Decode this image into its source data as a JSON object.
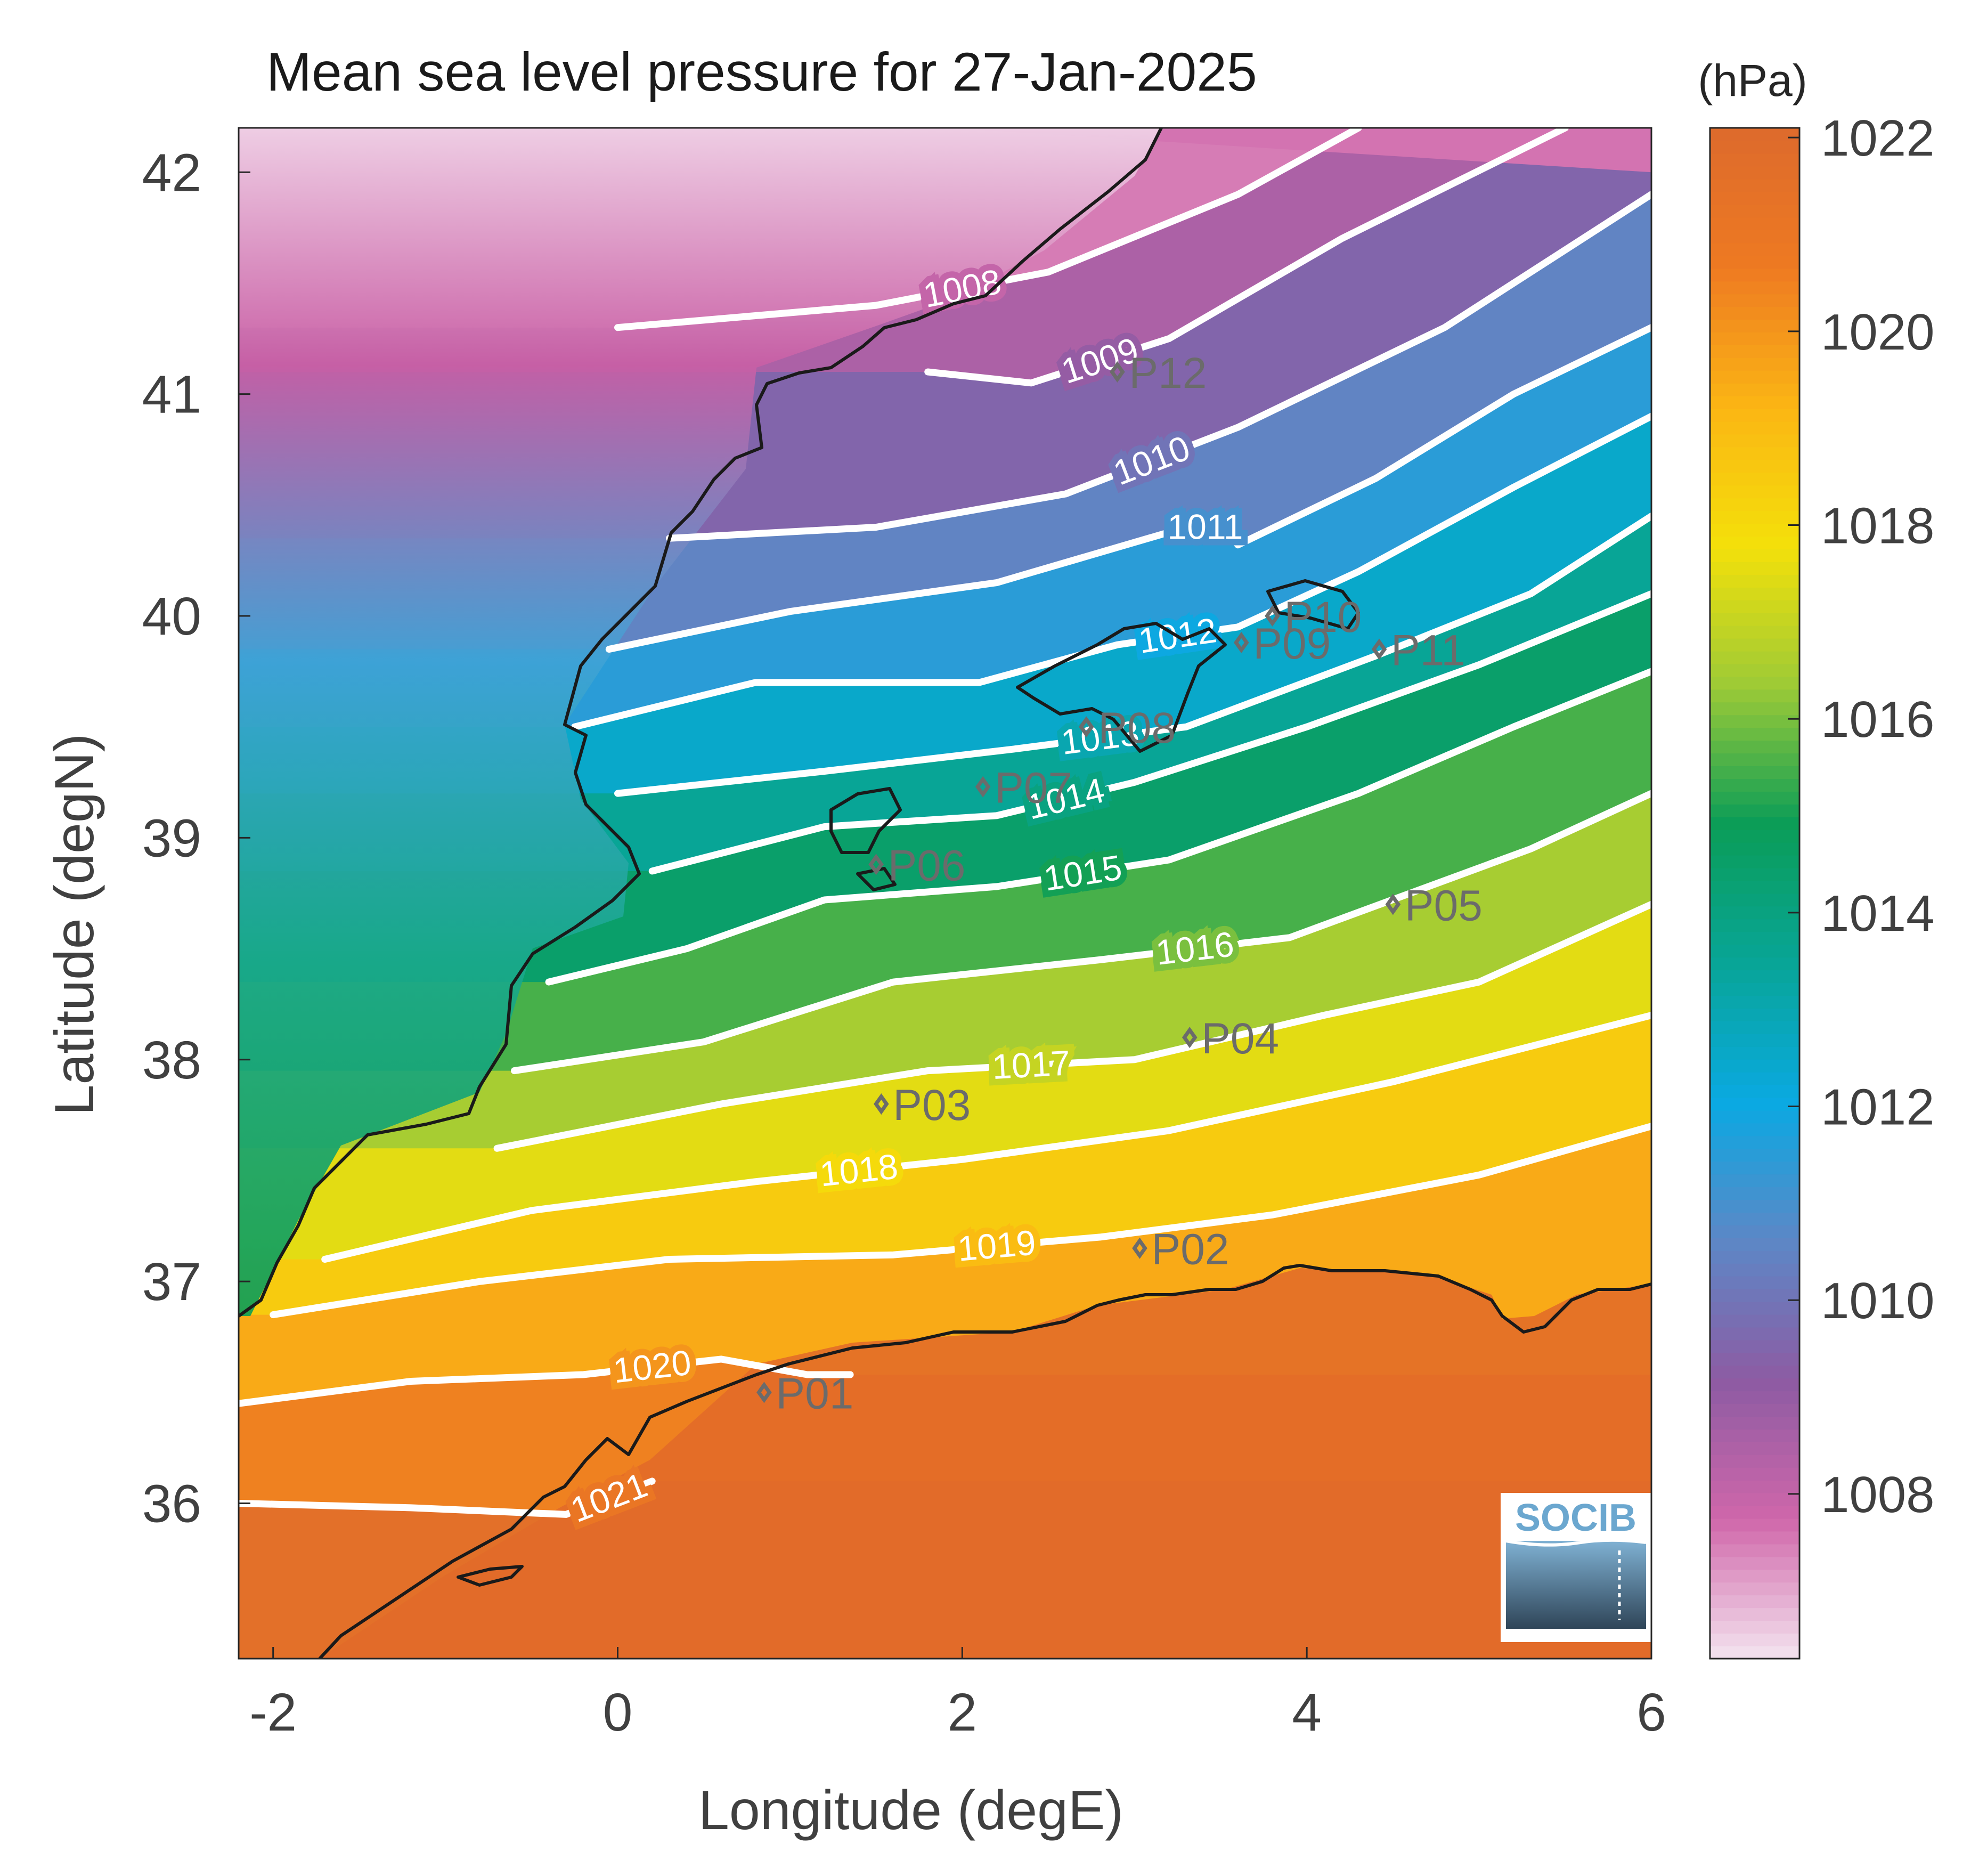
{
  "chart_data": {
    "type": "heatmap",
    "title": "Mean sea level pressure for 27-Jan-2025",
    "xlabel": "Longitude (degE)",
    "ylabel": "Latitude (degN)",
    "xlim": [
      -2.2,
      6.0
    ],
    "ylim": [
      35.3,
      42.2
    ],
    "xticks": [
      -2,
      0,
      2,
      4,
      6
    ],
    "xtick_labels": [
      "-2",
      "0",
      "2",
      "4",
      "6"
    ],
    "yticks": [
      36,
      37,
      38,
      39,
      40,
      41,
      42
    ],
    "ytick_labels": [
      "36",
      "37",
      "38",
      "39",
      "40",
      "41",
      "42"
    ],
    "colorbar": {
      "unit": "(hPa)",
      "range": [
        1006.3,
        1022.1
      ],
      "ticks": [
        1008,
        1010,
        1012,
        1014,
        1016,
        1018,
        1020,
        1022
      ],
      "tick_labels": [
        "1008",
        "1010",
        "1012",
        "1014",
        "1016",
        "1018",
        "1020",
        "1022"
      ],
      "colormap": [
        "#f4e4ef",
        "#d067aa",
        "#8d5ba3",
        "#5d87c6",
        "#0aa9e2",
        "#08a597",
        "#0b9d57",
        "#9ecb36",
        "#f4e00a",
        "#fbb514",
        "#ee7a22",
        "#dd6a2c"
      ]
    },
    "contours": [
      {
        "level": 1008,
        "label": "1008",
        "points": [
          [
            0.0,
            41.3
          ],
          [
            1.5,
            41.4
          ],
          [
            2.5,
            41.55
          ],
          [
            3.6,
            41.9
          ],
          [
            4.3,
            42.2
          ]
        ]
      },
      {
        "level": 1009,
        "label": "1009",
        "points": [
          [
            1.8,
            41.1
          ],
          [
            2.4,
            41.05
          ],
          [
            3.2,
            41.25
          ],
          [
            4.2,
            41.7
          ],
          [
            5.5,
            42.2
          ]
        ]
      },
      {
        "level": 1010,
        "label": "1010",
        "points": [
          [
            0.3,
            40.35
          ],
          [
            1.5,
            40.4
          ],
          [
            2.6,
            40.55
          ],
          [
            3.6,
            40.85
          ],
          [
            4.8,
            41.3
          ],
          [
            6.0,
            41.9
          ]
        ]
      },
      {
        "level": 1011,
        "label": "1011",
        "points": [
          [
            -0.05,
            39.85
          ],
          [
            1.0,
            40.02
          ],
          [
            2.2,
            40.15
          ],
          [
            3.3,
            40.4
          ],
          [
            3.52,
            40.4
          ],
          [
            3.6,
            40.32
          ],
          [
            4.4,
            40.62
          ],
          [
            5.2,
            41.0
          ],
          [
            6.0,
            41.3
          ]
        ]
      },
      {
        "level": 1012,
        "label": "1012",
        "points": [
          [
            -0.25,
            39.5
          ],
          [
            0.8,
            39.7
          ],
          [
            2.1,
            39.7
          ],
          [
            2.9,
            39.87
          ],
          [
            3.6,
            39.95
          ],
          [
            4.3,
            40.2
          ],
          [
            5.2,
            40.58
          ],
          [
            6.0,
            40.9
          ]
        ]
      },
      {
        "level": 1013,
        "label": "1013",
        "points": [
          [
            0.0,
            39.2
          ],
          [
            1.2,
            39.3
          ],
          [
            2.3,
            39.4
          ],
          [
            3.3,
            39.5
          ],
          [
            4.4,
            39.82
          ],
          [
            5.3,
            40.1
          ],
          [
            6.0,
            40.45
          ]
        ]
      },
      {
        "level": 1014,
        "label": "1014",
        "points": [
          [
            0.2,
            38.85
          ],
          [
            1.2,
            39.05
          ],
          [
            2.2,
            39.1
          ],
          [
            3.0,
            39.25
          ],
          [
            4.0,
            39.5
          ],
          [
            5.0,
            39.78
          ],
          [
            6.0,
            40.1
          ]
        ]
      },
      {
        "level": 1015,
        "label": "1015",
        "points": [
          [
            -0.4,
            38.35
          ],
          [
            0.4,
            38.5
          ],
          [
            1.2,
            38.72
          ],
          [
            2.2,
            38.78
          ],
          [
            3.2,
            38.9
          ],
          [
            4.3,
            39.2
          ],
          [
            5.2,
            39.5
          ],
          [
            6.0,
            39.75
          ]
        ]
      },
      {
        "level": 1016,
        "label": "1016",
        "points": [
          [
            -0.6,
            37.95
          ],
          [
            0.5,
            38.08
          ],
          [
            1.6,
            38.35
          ],
          [
            2.8,
            38.45
          ],
          [
            3.9,
            38.55
          ],
          [
            4.6,
            38.75
          ],
          [
            5.3,
            38.95
          ],
          [
            6.0,
            39.2
          ]
        ]
      },
      {
        "level": 1017,
        "label": "1017",
        "points": [
          [
            -0.7,
            37.6
          ],
          [
            0.6,
            37.8
          ],
          [
            1.8,
            37.95
          ],
          [
            3.0,
            38.0
          ],
          [
            4.1,
            38.2
          ],
          [
            5.0,
            38.35
          ],
          [
            6.0,
            38.7
          ]
        ]
      },
      {
        "level": 1018,
        "label": "1018",
        "points": [
          [
            -1.7,
            37.1
          ],
          [
            -0.5,
            37.32
          ],
          [
            0.8,
            37.45
          ],
          [
            2.0,
            37.55
          ],
          [
            3.2,
            37.68
          ],
          [
            4.5,
            37.9
          ],
          [
            6.0,
            38.2
          ]
        ]
      },
      {
        "level": 1019,
        "label": "1019",
        "points": [
          [
            -2.0,
            36.85
          ],
          [
            -0.8,
            37.0
          ],
          [
            0.3,
            37.1
          ],
          [
            1.6,
            37.12
          ],
          [
            2.8,
            37.2
          ],
          [
            3.8,
            37.3
          ],
          [
            5.0,
            37.48
          ],
          [
            6.0,
            37.7
          ]
        ]
      },
      {
        "level": 1020,
        "label": "1020",
        "points": [
          [
            -2.2,
            36.45
          ],
          [
            -1.2,
            36.55
          ],
          [
            -0.2,
            36.58
          ],
          [
            0.6,
            36.65
          ],
          [
            1.1,
            36.58
          ],
          [
            1.35,
            36.58
          ]
        ]
      },
      {
        "level": 1021,
        "label": "1021",
        "points": [
          [
            -2.2,
            36.0
          ],
          [
            -1.2,
            35.98
          ],
          [
            -0.3,
            35.95
          ],
          [
            0.2,
            36.1
          ]
        ]
      }
    ],
    "stations": [
      {
        "name": "P01",
        "lon": 0.85,
        "lat": 36.5
      },
      {
        "name": "P02",
        "lon": 3.03,
        "lat": 37.15
      },
      {
        "name": "P03",
        "lon": 1.53,
        "lat": 37.8
      },
      {
        "name": "P04",
        "lon": 3.32,
        "lat": 38.1
      },
      {
        "name": "P05",
        "lon": 4.5,
        "lat": 38.7
      },
      {
        "name": "P06",
        "lon": 1.5,
        "lat": 38.88
      },
      {
        "name": "P07",
        "lon": 2.12,
        "lat": 39.23
      },
      {
        "name": "P08",
        "lon": 2.72,
        "lat": 39.5
      },
      {
        "name": "P09",
        "lon": 3.62,
        "lat": 39.88
      },
      {
        "name": "P10",
        "lon": 3.8,
        "lat": 40.0
      },
      {
        "name": "P11",
        "lon": 4.42,
        "lat": 39.85
      },
      {
        "name": "P12",
        "lon": 2.9,
        "lat": 41.1
      }
    ]
  },
  "logo": {
    "text": "SOCIB"
  }
}
